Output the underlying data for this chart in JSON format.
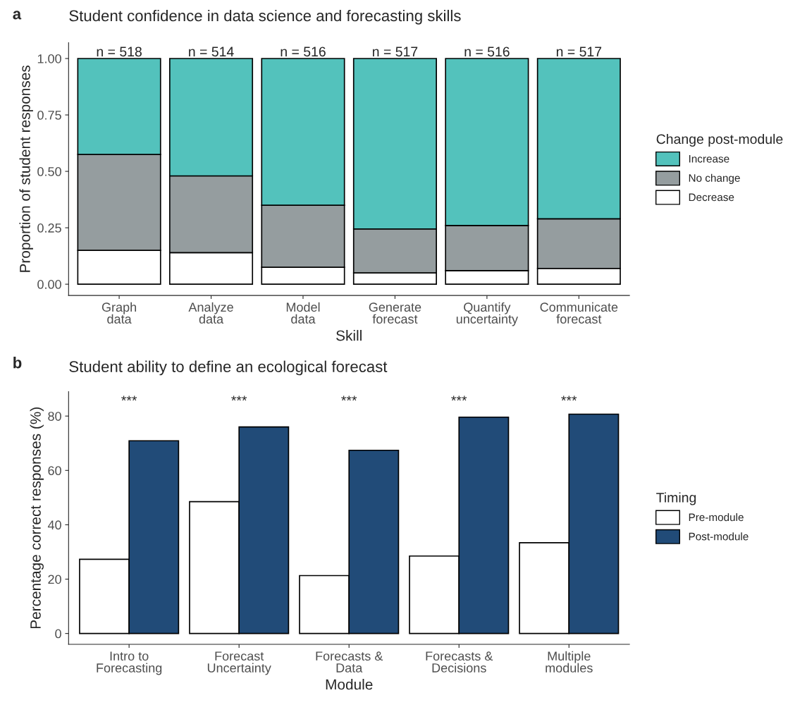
{
  "chart_data": [
    {
      "type": "bar",
      "stacked": true,
      "title": "Student confidence in data science and forecasting skills",
      "xlabel": "Skill",
      "ylabel": "Proportion of student responses",
      "legend_title": "Change post-module",
      "legend": "right",
      "grid": false,
      "categories": [
        "Graph\ndata",
        "Analyze\ndata",
        "Model\ndata",
        "Generate\nforecast",
        "Quantify\nuncertainty",
        "Communicate\nforecast"
      ],
      "series": [
        {
          "name": "Decrease",
          "color": "#ffffff",
          "values": [
            0.15,
            0.14,
            0.075,
            0.05,
            0.06,
            0.07
          ]
        },
        {
          "name": "No change",
          "color": "#959d9f",
          "values": [
            0.425,
            0.34,
            0.275,
            0.195,
            0.2,
            0.22
          ]
        },
        {
          "name": "Increase",
          "color": "#53c2bc",
          "values": [
            0.425,
            0.52,
            0.65,
            0.755,
            0.74,
            0.71
          ]
        }
      ],
      "ylim": [
        -0.05,
        1.07
      ],
      "yticks": [
        {
          "value": 0,
          "label": "0.00"
        },
        {
          "value": 0.25,
          "label": "0.25"
        },
        {
          "value": 0.5,
          "label": "0.50"
        },
        {
          "value": 0.75,
          "label": "0.75"
        },
        {
          "value": 1,
          "label": "1.00"
        }
      ],
      "annotations": [
        "a",
        "n = 518",
        "n = 514",
        "n = 516",
        "n = 517",
        "n = 516",
        "n = 517"
      ]
    },
    {
      "type": "bar",
      "title": "Student ability to define an ecological forecast",
      "xlabel": "Module",
      "ylabel": "Percentage correct responses (%)",
      "legend_title": "Timing",
      "legend": "right",
      "grid": false,
      "categories": [
        "Intro to\nForecasting",
        "Forecast\nUncertainty",
        "Forecasts &\nData",
        "Forecasts &\nDecisions",
        "Multiple\nmodules"
      ],
      "series": [
        {
          "name": "Pre-module",
          "color": "#ffffff",
          "values": [
            27.3,
            48.5,
            21.3,
            28.5,
            33.4
          ]
        },
        {
          "name": "Post-module",
          "color": "#214b78",
          "values": [
            70.9,
            76,
            67.4,
            79.6,
            80.7
          ]
        }
      ],
      "ylim": [
        -4,
        89
      ],
      "yticks": [
        0,
        20,
        40,
        60,
        80
      ],
      "annotations": [
        "b",
        "***",
        "***",
        "***",
        "***",
        "***"
      ]
    }
  ]
}
